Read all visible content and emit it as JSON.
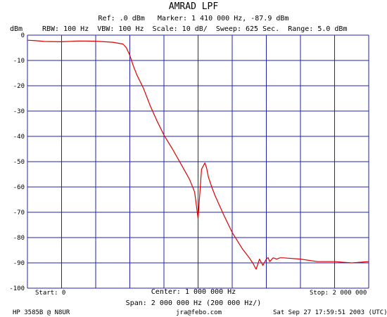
{
  "chart_data": {
    "type": "line",
    "title": "AMRAD LPF",
    "header_line1": "Ref: .0 dBm   Marker: 1 410 000 Hz, -87.9 dBm",
    "header_line2": "RBW: 100 Hz  VBW: 100 Hz  Scale: 10 dB/  Sweep: 625 Sec.  Range: 5.0 dBm",
    "ylabel": "dBm",
    "ylim": [
      -100,
      0
    ],
    "xlim": [
      0,
      2000000
    ],
    "y_ticks": [
      "0",
      "-10",
      "-20",
      "-30",
      "-40",
      "-50",
      "-60",
      "-70",
      "-80",
      "-90",
      "-100"
    ],
    "x_divisions": 10,
    "y_divisions": 10,
    "grid": true,
    "grid_color": "#2222aa",
    "trace_color": "#dd0000",
    "start_label": "Start: 0",
    "center_label": "Center: 1 000 000 Hz",
    "stop_label": "Stop: 2 000 000",
    "span_label": "Span: 2 000 000 Hz (200 000 Hz/)",
    "instrument_label": "HP 3585B @ N8UR",
    "email_label": "jra@febo.com",
    "date_label": "Sat Sep 27 17:59:51 2003 (UTC)",
    "series": [
      {
        "x": [
          0,
          50000,
          100000,
          200000,
          300000,
          400000,
          500000,
          560000,
          580000,
          600000,
          620000,
          640000,
          680000,
          720000,
          760000,
          800000,
          850000,
          900000,
          950000,
          980000,
          1000000,
          1020000,
          1040000,
          1050000,
          1060000,
          1080000,
          1100000,
          1150000,
          1200000,
          1260000,
          1300000,
          1320000,
          1340000,
          1360000,
          1380000,
          1400000,
          1410000,
          1420000,
          1440000,
          1460000,
          1480000,
          1500000,
          1600000,
          1700000,
          1800000,
          1900000,
          2000000
        ],
        "y": [
          -2.0,
          -2.2,
          -2.5,
          -2.6,
          -2.3,
          -2.4,
          -2.8,
          -3.5,
          -5.0,
          -8.0,
          -12.0,
          -15.5,
          -21.0,
          -28.0,
          -34.0,
          -39.5,
          -45.0,
          -51.0,
          -57.0,
          -62.0,
          -72.5,
          -53.0,
          -50.5,
          -52.5,
          -56.0,
          -60.0,
          -63.5,
          -71.0,
          -78.0,
          -84.5,
          -88.0,
          -90.0,
          -92.5,
          -88.5,
          -91.0,
          -88.5,
          -87.9,
          -89.5,
          -88.0,
          -88.5,
          -88.0,
          -88.0,
          -88.5,
          -89.5,
          -89.5,
          -90.0,
          -89.5
        ]
      }
    ]
  }
}
